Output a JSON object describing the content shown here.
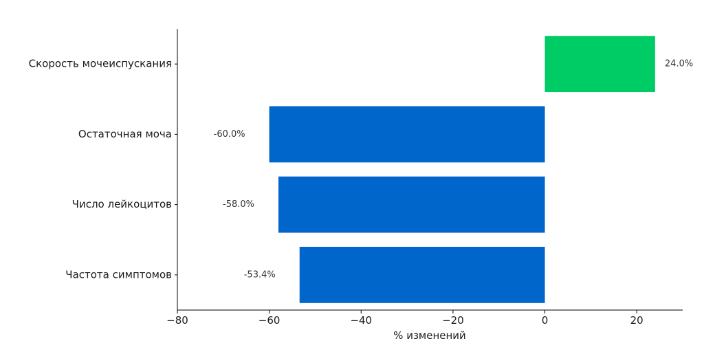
{
  "chart_data": {
    "type": "bar",
    "orientation": "horizontal",
    "categories": [
      "Скорость мочеиспускания",
      "Остаточная моча",
      "Число лейкоцитов",
      "Частота симптомов"
    ],
    "values": [
      24.0,
      -60.0,
      -58.0,
      -53.4
    ],
    "value_labels": [
      "24.0%",
      "-60.0%",
      "-58.0%",
      "-53.4%"
    ],
    "xlabel": "% изменений",
    "ylabel": "",
    "title": "",
    "xlim": [
      -80,
      30
    ],
    "xticks": [
      -80,
      -60,
      -40,
      -20,
      0,
      20
    ],
    "xtick_labels": [
      "−80",
      "−60",
      "−40",
      "−20",
      "0",
      "20"
    ],
    "colors": {
      "positive": "#00cc66",
      "negative": "#0066cc"
    },
    "grid": false,
    "legend": "none"
  }
}
